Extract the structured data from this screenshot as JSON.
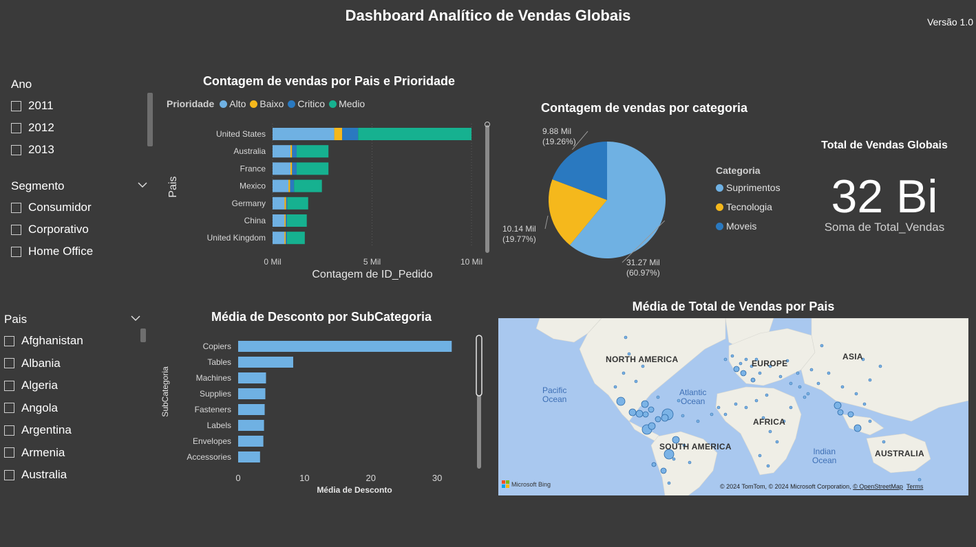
{
  "header": {
    "title": "Dashboard Analítico de Vendas Globais",
    "version": "Versão 1.0"
  },
  "slicers": {
    "ano": {
      "title": "Ano",
      "items": [
        "2011",
        "2012",
        "2013"
      ]
    },
    "segmento": {
      "title": "Segmento",
      "items": [
        "Consumidor",
        "Corporativo",
        "Home Office"
      ]
    },
    "pais": {
      "title": "Pais",
      "items": [
        "Afghanistan",
        "Albania",
        "Algeria",
        "Angola",
        "Argentina",
        "Armenia",
        "Australia"
      ]
    }
  },
  "colors": {
    "alto": "#6fb1e3",
    "baixo": "#f5b81c",
    "critico": "#2a79c0",
    "medio": "#16b190",
    "bar": "#6fb1e3"
  },
  "chart_data": [
    {
      "type": "bar",
      "orientation": "horizontal-stacked",
      "title": "Contagem de vendas por Pais e Prioridade",
      "legend_title": "Prioridade",
      "legend_position": "top-left",
      "xlabel": "Contagem de ID_Pedido",
      "ylabel": "Pais",
      "xticks": [
        "0 Mil",
        "5 Mil",
        "10 Mil"
      ],
      "xlim": [
        0,
        10000
      ],
      "categories": [
        "United States",
        "Australia",
        "France",
        "Mexico",
        "Germany",
        "China",
        "United Kingdom"
      ],
      "series": [
        {
          "name": "Alto",
          "values": [
            3100,
            900,
            900,
            800,
            600,
            600,
            600
          ]
        },
        {
          "name": "Baixo",
          "values": [
            400,
            80,
            80,
            80,
            80,
            60,
            60
          ]
        },
        {
          "name": "Critico",
          "values": [
            800,
            230,
            230,
            200,
            60,
            60,
            60
          ]
        },
        {
          "name": "Medio",
          "values": [
            5700,
            1600,
            1600,
            1400,
            1050,
            1000,
            900
          ]
        }
      ]
    },
    {
      "type": "pie",
      "title": "Contagem de vendas por categoria",
      "legend_title": "Categoria",
      "categories": [
        "Suprimentos",
        "Tecnologia",
        "Moveis"
      ],
      "values": [
        31.27,
        10.14,
        9.88
      ],
      "labels": [
        {
          "value": "31.27 Mil",
          "pct": "(60.97%)"
        },
        {
          "value": "10.14 Mil",
          "pct": "(19.77%)"
        },
        {
          "value": "9.88 Mil",
          "pct": "(19.26%)"
        }
      ]
    },
    {
      "type": "bar",
      "orientation": "horizontal",
      "title": "Média de Desconto por SubCategoria",
      "xlabel": "Média de Desconto",
      "ylabel": "SubCategoria",
      "xticks": [
        "0",
        "10",
        "20",
        "30"
      ],
      "xlim": [
        0,
        33
      ],
      "categories": [
        "Copiers",
        "Tables",
        "Machines",
        "Supplies",
        "Fasteners",
        "Labels",
        "Envelopes",
        "Accessories"
      ],
      "values": [
        32.2,
        8.3,
        4.2,
        4.1,
        4.0,
        3.9,
        3.8,
        3.3
      ]
    }
  ],
  "kpi": {
    "title": "Total de Vendas Globais",
    "value": "32 Bi",
    "subtitle": "Soma de Total_Vendas"
  },
  "map": {
    "title": "Média de Total de Vendas por Pais",
    "continents": [
      "NORTH AMERICA",
      "EUROPE",
      "ASIA",
      "AFRICA",
      "SOUTH AMERICA",
      "AUSTRALIA"
    ],
    "oceans": [
      "Pacific\nOcean",
      "Atlantic\nOcean",
      "Indian\nOcean"
    ],
    "brand": "Microsoft Bing",
    "attribution": "© 2024 TomTom, © 2024 Microsoft Corporation,",
    "osm_link": "© OpenStreetMap",
    "terms_link": "Terms"
  }
}
